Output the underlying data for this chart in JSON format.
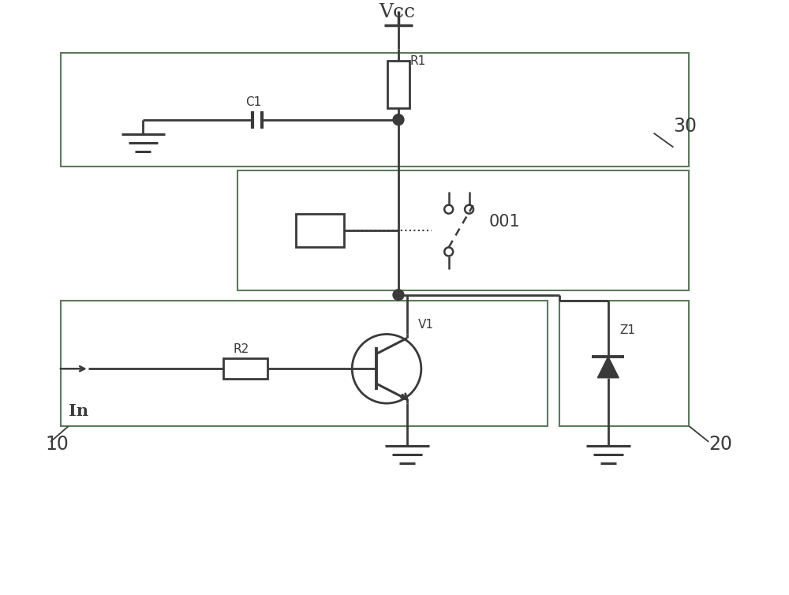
{
  "bg_color": "#ffffff",
  "line_color": "#3a3a3a",
  "box_color": "#5a7a5a",
  "vcc_label": "Vcc",
  "r1_label": "R1",
  "r2_label": "R2",
  "c1_label": "C1",
  "v1_label": "V1",
  "z1_label": "Z1",
  "relay_label": "001",
  "in_label": "In",
  "box10_label": "10",
  "box20_label": "20",
  "box30_label": "30"
}
